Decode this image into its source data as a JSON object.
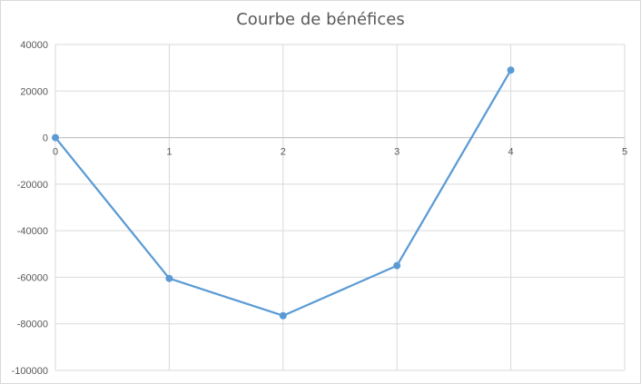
{
  "chart_data": {
    "type": "scatter",
    "title": "Courbe de bénéfices",
    "xlabel": "",
    "ylabel": "",
    "xlim": [
      0,
      5
    ],
    "ylim": [
      -100000,
      40000
    ],
    "x_ticks": [
      "0",
      "1",
      "2",
      "3",
      "4",
      "5"
    ],
    "y_ticks": [
      "40000",
      "20000",
      "0",
      "-20000",
      "-40000",
      "-60000",
      "-80000",
      "-100000"
    ],
    "grid": true,
    "legend": "none",
    "series": [
      {
        "color": "#5b9bd5",
        "points": [
          {
            "x": 0,
            "y": 0
          },
          {
            "x": 1,
            "y": -60500
          },
          {
            "x": 2,
            "y": -76500
          },
          {
            "x": 3,
            "y": -55000
          },
          {
            "x": 4,
            "y": 29000
          }
        ]
      }
    ]
  }
}
